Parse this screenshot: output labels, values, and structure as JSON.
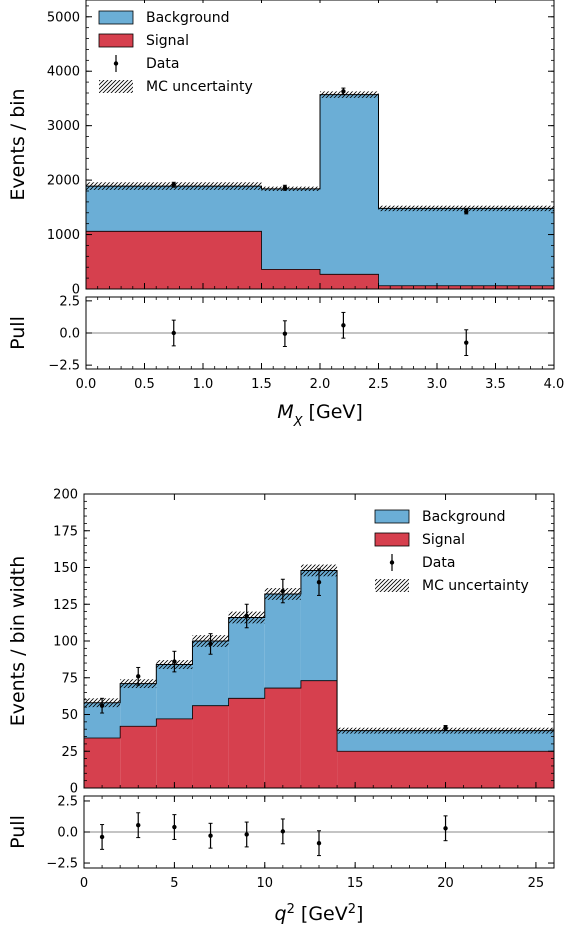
{
  "chart_data": [
    {
      "type": "bar",
      "stacked_histogram": true,
      "xlabel": "M_X [GeV]",
      "ylabel": "Events / bin",
      "xlim": [
        0,
        4
      ],
      "ylim": [
        0,
        5400
      ],
      "yticks": [
        0,
        1000,
        2000,
        3000,
        4000,
        5000
      ],
      "bin_edges": [
        0,
        1.5,
        2.0,
        2.5,
        4.0
      ],
      "series": [
        {
          "name": "Background",
          "color": "#6baed6",
          "values": [
            830,
            1480,
            3300,
            1420
          ]
        },
        {
          "name": "Signal",
          "color": "#d6404e",
          "values": [
            1060,
            360,
            270,
            60
          ]
        }
      ],
      "mc_uncertainty": {
        "name": "MC uncertainty",
        "values": [
          70,
          40,
          60,
          50
        ]
      },
      "data": {
        "name": "Data",
        "x": [
          0.75,
          1.7,
          2.2,
          3.25
        ],
        "y": [
          1915,
          1860,
          3630,
          1420
        ],
        "yerr": [
          45,
          45,
          60,
          40
        ]
      },
      "legend_location": "top-left",
      "pull": {
        "ylabel": "Pull",
        "ylim": [
          -2.8,
          2.8
        ],
        "yticks": [
          -2.5,
          0.0,
          2.5
        ],
        "ytick_labels": [
          "−2.5",
          "0.0",
          "2.5"
        ],
        "xticks": [
          0.0,
          0.5,
          1.0,
          1.5,
          2.0,
          2.5,
          3.0,
          3.5,
          4.0
        ],
        "xtick_labels": [
          "0.0",
          "0.5",
          "1.0",
          "1.5",
          "2.0",
          "2.5",
          "3.0",
          "3.5",
          "4.0"
        ],
        "x": [
          0.75,
          1.7,
          2.2,
          3.25
        ],
        "y": [
          0.0,
          -0.05,
          0.6,
          -0.75
        ],
        "yerr": [
          1.0,
          1.0,
          1.0,
          1.0
        ]
      }
    },
    {
      "type": "bar",
      "stacked_histogram": true,
      "xlabel": "q^2 [GeV^2]",
      "ylabel": "Events / bin width",
      "xlim": [
        0,
        26
      ],
      "ylim": [
        0,
        200
      ],
      "yticks": [
        0,
        25,
        50,
        75,
        100,
        125,
        150,
        175,
        200
      ],
      "bin_edges": [
        0,
        2,
        4,
        6,
        8,
        10,
        12,
        14,
        26
      ],
      "series": [
        {
          "name": "Background",
          "color": "#6baed6",
          "values": [
            24,
            29,
            37,
            44,
            55,
            64,
            75,
            14
          ]
        },
        {
          "name": "Signal",
          "color": "#d6404e",
          "values": [
            34,
            42,
            47,
            56,
            61,
            68,
            73,
            25
          ]
        }
      ],
      "mc_uncertainty": {
        "name": "MC uncertainty",
        "values": [
          3,
          3,
          3,
          4,
          4,
          4,
          4,
          2
        ]
      },
      "data": {
        "name": "Data",
        "x": [
          1,
          3,
          5,
          7,
          9,
          11,
          13,
          20
        ],
        "y": [
          56,
          76,
          86,
          98,
          117,
          134,
          140,
          41
        ],
        "yerr": [
          5,
          6,
          7,
          7,
          8,
          8,
          9,
          1.5
        ]
      },
      "legend_location": "top-right",
      "pull": {
        "ylabel": "Pull",
        "ylim": [
          -2.9,
          2.9
        ],
        "yticks": [
          -2.5,
          0.0,
          2.5
        ],
        "ytick_labels": [
          "−2.5",
          "0.0",
          "2.5"
        ],
        "xticks": [
          0,
          5,
          10,
          15,
          20,
          25
        ],
        "xtick_labels": [
          "0",
          "5",
          "10",
          "15",
          "20",
          "25"
        ],
        "x": [
          1,
          3,
          5,
          7,
          9,
          11,
          13,
          20
        ],
        "y": [
          -0.4,
          0.55,
          0.4,
          -0.3,
          -0.2,
          0.05,
          -0.9,
          0.3
        ],
        "yerr": [
          1.0,
          1.0,
          1.0,
          1.0,
          1.0,
          1.0,
          1.0,
          1.0
        ]
      }
    }
  ]
}
